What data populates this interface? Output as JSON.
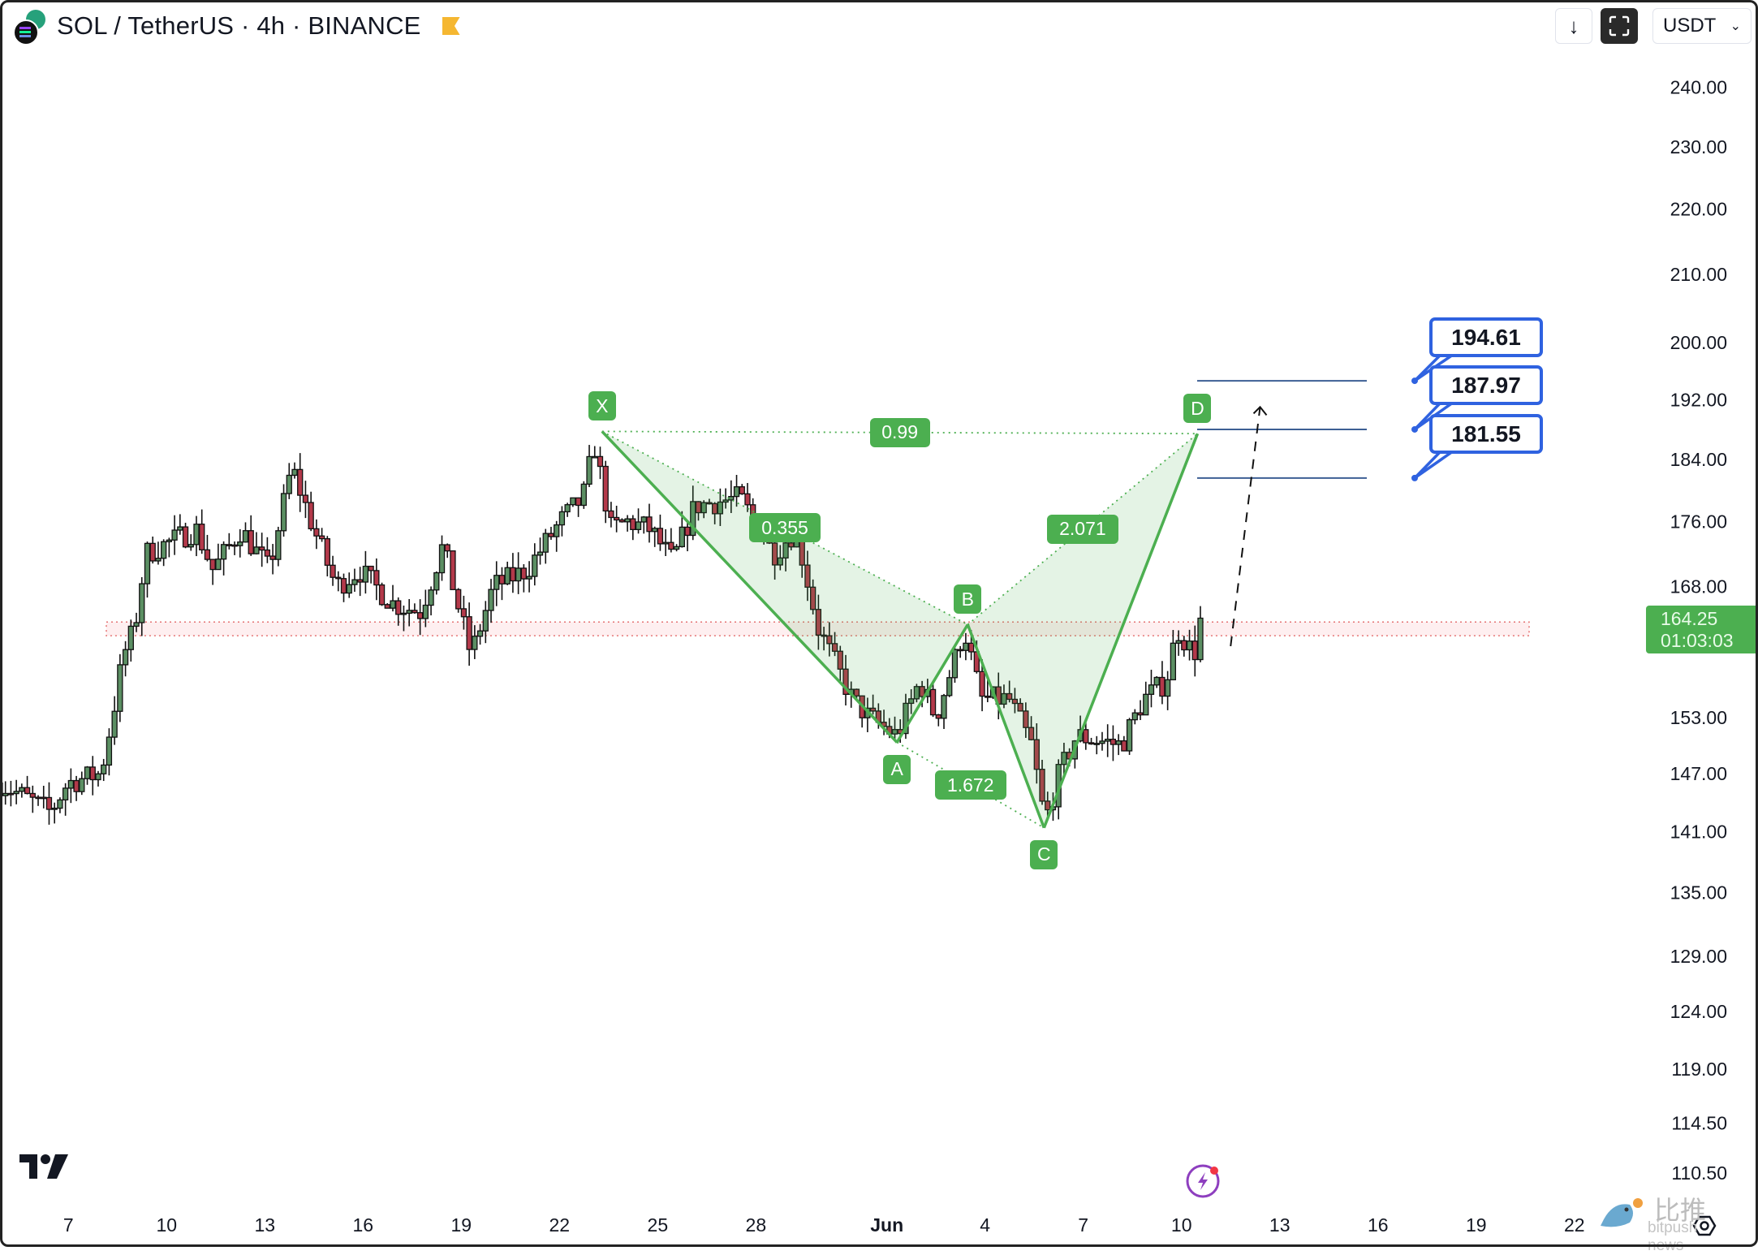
{
  "header": {
    "title": "SOL / TetherUS · 4h · BINANCE",
    "download_icon": "arrow-down-icon",
    "fullscreen_icon": "fullscreen-icon",
    "currency": "USDT"
  },
  "price_badge": {
    "price": "164.25",
    "countdown": "01:03:03",
    "color": "#4caf50"
  },
  "targets": [
    "194.61",
    "187.97",
    "181.55"
  ],
  "watermark": {
    "cn": "比推",
    "en": "bitpush news"
  },
  "chart_data": {
    "type": "candlestick",
    "symbol": "SOL/USDT",
    "interval": "4h",
    "y_scale": "log",
    "ylim": [
      108,
      245
    ],
    "y_ticks": [
      "240.00",
      "230.00",
      "220.00",
      "210.00",
      "200.00",
      "192.00",
      "184.00",
      "176.00",
      "168.00",
      "153.00",
      "147.00",
      "141.00",
      "135.00",
      "129.00",
      "124.00",
      "119.00",
      "114.50",
      "110.50"
    ],
    "x_ticks": [
      {
        "day": 7,
        "label": "7"
      },
      {
        "day": 10,
        "label": "10"
      },
      {
        "day": 13,
        "label": "13"
      },
      {
        "day": 16,
        "label": "16"
      },
      {
        "day": 19,
        "label": "19"
      },
      {
        "day": 22,
        "label": "22"
      },
      {
        "day": 25,
        "label": "25"
      },
      {
        "day": 28,
        "label": "28"
      },
      {
        "day": 32,
        "label": "Jun"
      },
      {
        "day": 35,
        "label": "4"
      },
      {
        "day": 38,
        "label": "7"
      },
      {
        "day": 41,
        "label": "10"
      },
      {
        "day": 44,
        "label": "13"
      },
      {
        "day": 47,
        "label": "16"
      },
      {
        "day": 50,
        "label": "19"
      },
      {
        "day": 53,
        "label": "22"
      }
    ],
    "x_unit": "days since Apr 30 (May 7 = 7, Jun 1 = 32)",
    "price_path": [
      [
        4.91,
        146
      ],
      [
        6.45,
        143
      ],
      [
        6.97,
        146
      ],
      [
        7.99,
        147
      ],
      [
        8.34,
        153
      ],
      [
        8.68,
        160
      ],
      [
        9.02,
        163
      ],
      [
        9.36,
        172
      ],
      [
        10.9,
        175
      ],
      [
        11.42,
        170
      ],
      [
        12.27,
        175
      ],
      [
        13.13,
        170
      ],
      [
        13.82,
        183
      ],
      [
        14.5,
        175
      ],
      [
        15.18,
        168
      ],
      [
        15.87,
        170
      ],
      [
        16.9,
        166
      ],
      [
        17.75,
        165
      ],
      [
        18.44,
        173
      ],
      [
        18.95,
        165
      ],
      [
        19.3,
        160
      ],
      [
        19.98,
        168
      ],
      [
        21.0,
        170
      ],
      [
        22.03,
        176
      ],
      [
        22.72,
        179
      ],
      [
        23.06,
        186
      ],
      [
        23.58,
        175
      ],
      [
        24.09,
        176
      ],
      [
        24.77,
        175
      ],
      [
        25.46,
        171
      ],
      [
        26.14,
        178
      ],
      [
        27.51,
        179
      ],
      [
        28.54,
        172
      ],
      [
        29.22,
        175
      ],
      [
        29.91,
        163
      ],
      [
        30.94,
        155
      ],
      [
        31.45,
        153
      ],
      [
        32.3,
        151
      ],
      [
        33.0,
        157
      ],
      [
        33.5,
        153
      ],
      [
        34.36,
        163
      ],
      [
        34.88,
        155
      ],
      [
        35.73,
        155
      ],
      [
        36.42,
        150
      ],
      [
        36.83,
        142
      ],
      [
        37.27,
        147
      ],
      [
        37.79,
        151
      ],
      [
        39.16,
        150
      ],
      [
        39.84,
        155
      ],
      [
        40.53,
        157
      ],
      [
        40.87,
        163
      ],
      [
        41.38,
        160
      ],
      [
        41.66,
        164.25
      ]
    ],
    "candle_colors": {
      "up": "#5b8f63",
      "down": "#b3394a",
      "outline": "#111111"
    },
    "harmonic_pattern": {
      "points": [
        {
          "label": "X",
          "day": 23.3,
          "price": 187.7
        },
        {
          "label": "A",
          "day": 32.31,
          "price": 150.3
        },
        {
          "label": "B",
          "day": 34.47,
          "price": 163.5
        },
        {
          "label": "C",
          "day": 36.8,
          "price": 141.4
        },
        {
          "label": "D",
          "day": 41.49,
          "price": 187.4
        }
      ],
      "ratios": [
        {
          "label": "0.99",
          "from": "X",
          "to": "D"
        },
        {
          "label": "0.355",
          "from": "X",
          "to": "B"
        },
        {
          "label": "1.672",
          "from": "A",
          "to": "C"
        },
        {
          "label": "2.071",
          "from": "B",
          "to": "D"
        }
      ],
      "color": "#4caf50"
    },
    "target_lines": [
      194.61,
      187.97,
      181.55
    ],
    "support_zone": [
      162.2,
      163.8
    ],
    "projection_arrow": {
      "from": [
        42.5,
        161
      ],
      "to": [
        43.4,
        191
      ]
    }
  }
}
